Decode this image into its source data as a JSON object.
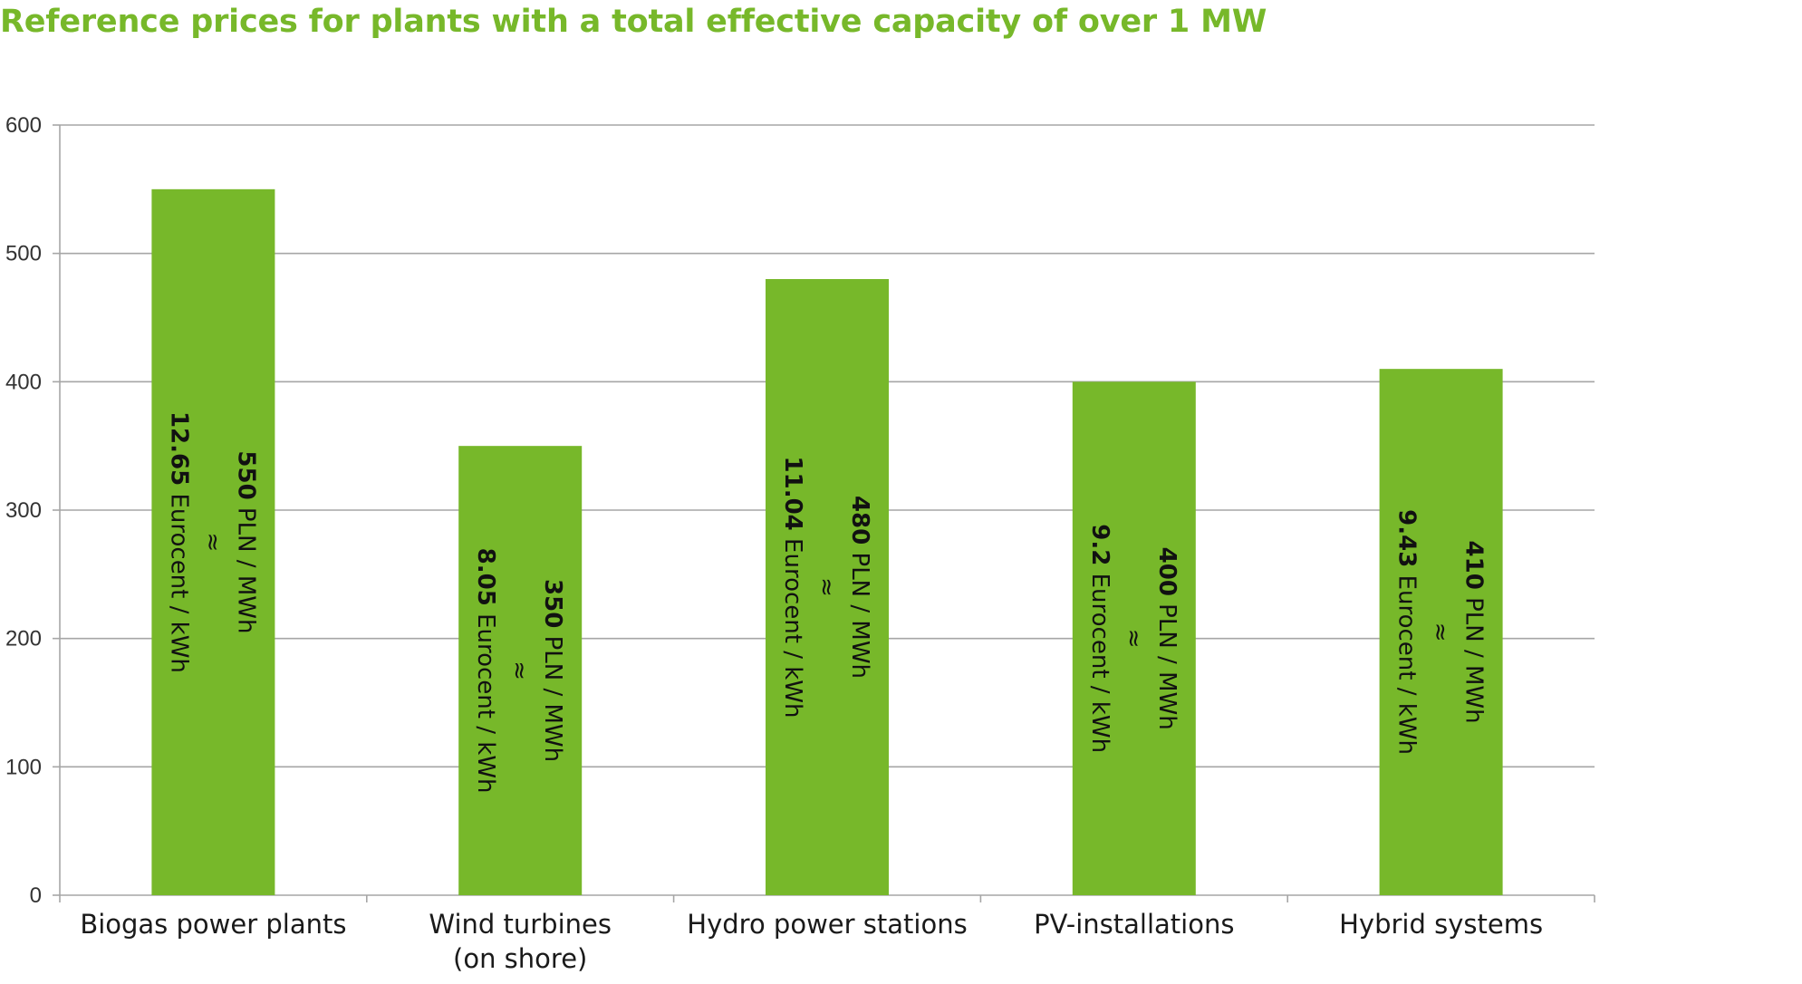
{
  "title": "Reference prices for plants with a total effective capacity of over 1 MW",
  "colors": {
    "bar": "#77b82a",
    "title": "#77b82a",
    "grid": "#a6a6a6",
    "axis": "#a6a6a6"
  },
  "chart_data": {
    "type": "bar",
    "title": "Reference prices for plants with a total effective capacity of over 1 MW",
    "xlabel": "",
    "ylabel": "",
    "ylim": [
      0,
      600
    ],
    "yticks": [
      0,
      100,
      200,
      300,
      400,
      500,
      600
    ],
    "grid": true,
    "legend": "none",
    "categories": [
      [
        "Biogas power plants"
      ],
      [
        "Wind turbines",
        "(on shore)"
      ],
      [
        "Hydro power stations"
      ],
      [
        "PV-installations"
      ],
      [
        "Hybrid systems"
      ]
    ],
    "values": [
      550,
      350,
      480,
      400,
      410
    ],
    "data_labels": [
      {
        "pln": "550",
        "pln_unit": " PLN / MWh",
        "approx": "≈",
        "eur": "12.65",
        "eur_unit": " Eurocent / kWh"
      },
      {
        "pln": "350",
        "pln_unit": " PLN / MWh",
        "approx": "≈",
        "eur": "8.05",
        "eur_unit": " Eurocent / kWh"
      },
      {
        "pln": "480",
        "pln_unit": " PLN / MWh",
        "approx": "≈",
        "eur": "11.04",
        "eur_unit": " Eurocent / kWh"
      },
      {
        "pln": "400",
        "pln_unit": " PLN / MWh",
        "approx": "≈",
        "eur": "9.2",
        "eur_unit": " Eurocent / kWh"
      },
      {
        "pln": "410",
        "pln_unit": " PLN / MWh",
        "approx": "≈",
        "eur": "9.43",
        "eur_unit": " Eurocent / kWh"
      }
    ]
  }
}
